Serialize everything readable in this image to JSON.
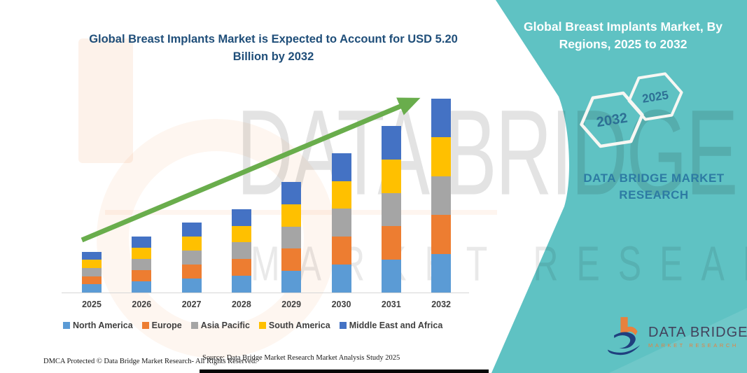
{
  "left": {
    "title": "Global Breast Implants Market is Expected to Account for USD 5.20 Billion by 2032",
    "footer_left": "DMCA Protected © Data Bridge Market Research-  All Rights Reserved.",
    "footer_right": "Source: Data Bridge Market Research  Market Analysis Study 2025"
  },
  "watermark": {
    "line1": "DATA BRIDGE",
    "line2": "MARKET RESEARCH"
  },
  "right": {
    "title": "Global Breast Implants Market, By Regions, 2025 to 2032",
    "hexagons": [
      {
        "label": "2032"
      },
      {
        "label": "2025"
      }
    ],
    "brand": "DATA BRIDGE MARKET RESEARCH",
    "logo_title": "DATA BRIDGE",
    "logo_subtitle": "MARKET RESEARCH"
  },
  "colors": {
    "teal_background": "#5FC2C3",
    "title_blue": "#1F4E79",
    "brand_blue": "#2d7ba3",
    "hex_year_blue": "#2d7095",
    "arrow_green": "#69AD4C",
    "logo_orange": "#E8813D",
    "logo_navy": "#1F3F7E",
    "axis_gray": "#d6d6d6"
  },
  "chart_data": {
    "type": "bar",
    "stacked": true,
    "title": "Global Breast Implants Market is Expected to Account for USD 5.20 Billion by 2032",
    "unit": "USD Billion",
    "categories": [
      "2025",
      "2026",
      "2027",
      "2028",
      "2029",
      "2030",
      "2031",
      "2032"
    ],
    "series": [
      {
        "name": "North America",
        "color": "#5B9BD5",
        "values": [
          0.22,
          0.3,
          0.375,
          0.45,
          0.59,
          0.75,
          0.89,
          1.04
        ]
      },
      {
        "name": "Europe",
        "color": "#ED7D31",
        "values": [
          0.22,
          0.3,
          0.375,
          0.45,
          0.59,
          0.75,
          0.89,
          1.04
        ]
      },
      {
        "name": "Asia Pacific",
        "color": "#A5A5A5",
        "values": [
          0.22,
          0.3,
          0.375,
          0.45,
          0.59,
          0.75,
          0.89,
          1.04
        ]
      },
      {
        "name": "South America",
        "color": "#FFC000",
        "values": [
          0.22,
          0.3,
          0.375,
          0.44,
          0.59,
          0.74,
          0.89,
          1.04
        ]
      },
      {
        "name": "Middle East and Africa",
        "color": "#4472C4",
        "values": [
          0.22,
          0.3,
          0.375,
          0.44,
          0.6,
          0.75,
          0.9,
          1.04
        ]
      }
    ],
    "totals": [
      1.1,
      1.5,
      1.88,
      2.23,
      2.96,
      3.74,
      4.46,
      5.2
    ],
    "ylim": [
      0,
      5.65
    ],
    "grid": false,
    "legend_position": "bottom",
    "trend_arrow": true
  }
}
